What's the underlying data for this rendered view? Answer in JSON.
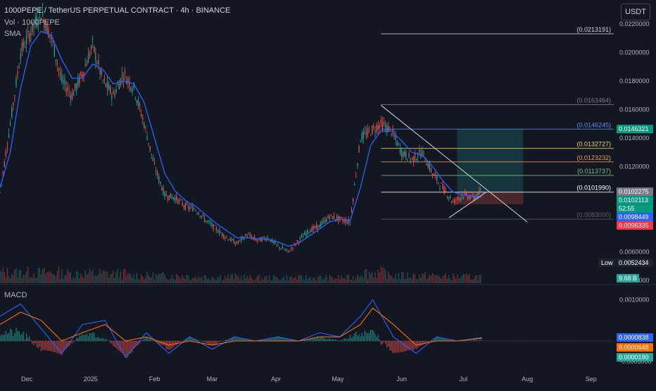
{
  "header": {
    "symbol_title": "1000PEPE / TetherUS PERPETUAL CONTRACT · 4h · BINANCE",
    "volume_label": "Vol · 1000PEPE",
    "sma_label": "SMA",
    "currency_button": "USDT"
  },
  "colors": {
    "background": "#131722",
    "candle_up": "#26a69a",
    "candle_down": "#ef5350",
    "sma_line": "#2962ff",
    "macd_line": "#2962ff",
    "signal_line": "#ff6d00"
  },
  "chart_data": [
    {
      "type": "candlestick",
      "panel": "price",
      "y_scale": "linear",
      "ylim": [
        0.0038,
        0.0232
      ],
      "x_range": [
        "2024-11-18",
        "2025-09-12"
      ],
      "x_ticks": [
        "Dec",
        "2025",
        "Feb",
        "Mar",
        "Apr",
        "May",
        "Jun",
        "Jul",
        "Aug",
        "Sep"
      ],
      "x_tick_dates": [
        "2024-12-01",
        "2025-01-01",
        "2025-02-01",
        "2025-03-01",
        "2025-04-01",
        "2025-05-01",
        "2025-06-01",
        "2025-07-01",
        "2025-08-01",
        "2025-09-01"
      ],
      "y_ticks": [
        "0.0220000",
        "0.0200000",
        "0.0180000",
        "0.0160000",
        "0.0140000",
        "0.0120000",
        "0.0060000",
        "0.0040000"
      ],
      "y_tick_values": [
        0.022,
        0.02,
        0.018,
        0.016,
        0.014,
        0.012,
        0.006,
        0.004
      ],
      "series": [
        {
          "x": [
            "2024-11-18",
            "2024-11-23",
            "2024-11-28",
            "2024-12-03",
            "2024-12-08",
            "2024-12-13",
            "2024-12-18",
            "2024-12-23",
            "2024-12-28",
            "2025-01-02",
            "2025-01-07",
            "2025-01-12",
            "2025-01-17",
            "2025-01-22",
            "2025-01-27",
            "2025-02-01",
            "2025-02-06",
            "2025-02-11",
            "2025-02-16",
            "2025-02-21",
            "2025-02-26",
            "2025-03-03",
            "2025-03-08",
            "2025-03-13",
            "2025-03-18",
            "2025-03-23",
            "2025-03-28",
            "2025-04-02",
            "2025-04-07",
            "2025-04-12",
            "2025-04-17",
            "2025-04-22",
            "2025-04-27",
            "2025-05-02",
            "2025-05-07",
            "2025-05-12",
            "2025-05-17",
            "2025-05-22",
            "2025-05-27",
            "2025-06-01",
            "2025-06-06",
            "2025-06-11",
            "2025-06-16",
            "2025-06-21",
            "2025-06-26",
            "2025-07-01",
            "2025-07-06",
            "2025-07-10"
          ],
          "close": [
            0.0102,
            0.015,
            0.02,
            0.0215,
            0.0228,
            0.021,
            0.018,
            0.017,
            0.0185,
            0.0205,
            0.018,
            0.017,
            0.0185,
            0.0175,
            0.015,
            0.012,
            0.01,
            0.0098,
            0.0092,
            0.009,
            0.0082,
            0.0076,
            0.007,
            0.0066,
            0.0072,
            0.0068,
            0.007,
            0.0064,
            0.006,
            0.0068,
            0.0075,
            0.0078,
            0.0085,
            0.0083,
            0.0081,
            0.014,
            0.0145,
            0.015,
            0.0145,
            0.013,
            0.0125,
            0.013,
            0.0115,
            0.0105,
            0.0095,
            0.01,
            0.0098,
            0.0102
          ]
        }
      ],
      "sma_series": [
        0.0105,
        0.013,
        0.0175,
        0.0205,
        0.0215,
        0.0212,
        0.0195,
        0.0182,
        0.0182,
        0.0192,
        0.0188,
        0.0178,
        0.018,
        0.0178,
        0.0165,
        0.014,
        0.0115,
        0.0103,
        0.0096,
        0.0092,
        0.0086,
        0.008,
        0.0075,
        0.007,
        0.007,
        0.0069,
        0.0069,
        0.0067,
        0.0064,
        0.0066,
        0.0071,
        0.0076,
        0.0081,
        0.0083,
        0.0082,
        0.0105,
        0.0135,
        0.0145,
        0.0145,
        0.0138,
        0.013,
        0.0128,
        0.012,
        0.011,
        0.0102,
        0.01,
        0.0099,
        0.00984
      ],
      "fib_levels": [
        {
          "label": "(0.0213191)",
          "value": 0.0213191,
          "color": "#d1d4dc"
        },
        {
          "label": "(0.0163464)",
          "value": 0.0163464,
          "color": "#787b86"
        },
        {
          "label": "(0.0146245)",
          "value": 0.0146245,
          "color": "#5b8def"
        },
        {
          "label": "(0.0132727)",
          "value": 0.0132727,
          "color": "#f0d66e"
        },
        {
          "label": "(0.0123232)",
          "value": 0.0123232,
          "color": "#ef9d5e"
        },
        {
          "label": "(0.0113737)",
          "value": 0.0113737,
          "color": "#7cc48c"
        },
        {
          "label": "(0.0101990)",
          "value": 0.010199,
          "color": "#ffffff"
        },
        {
          "label": "(0.0083000)",
          "value": 0.0083,
          "color": "#5d606b"
        }
      ],
      "position_tool": {
        "entry": 0.01019,
        "target": 0.0146245,
        "stop": 0.00935,
        "start": "2025-06-28",
        "end": "2025-07-30"
      },
      "trendlines": [
        {
          "from": [
            "2025-05-22",
            0.0163
          ],
          "to": [
            "2025-08-01",
            0.0081
          ]
        },
        {
          "from": [
            "2025-06-24",
            0.0084
          ],
          "to": [
            "2025-07-12",
            0.0102
          ]
        }
      ],
      "price_tags": [
        {
          "text": "0.0146321",
          "value": 0.0146321,
          "bg": "#089981",
          "fg": "#ffffff"
        },
        {
          "text": "0.0102275",
          "value": 0.0102275,
          "bg": "#787b86",
          "fg": "#ffffff"
        },
        {
          "text": "0.0102113",
          "value": 0.0102113,
          "bg": "#089981",
          "fg": "#ffffff"
        },
        {
          "text": "52:55",
          "value": 0.01,
          "bg": "#089981",
          "fg": "#ffffff"
        },
        {
          "text": "0.0098449",
          "value": 0.0098449,
          "bg": "#2962ff",
          "fg": "#ffffff"
        },
        {
          "text": "0.0096335",
          "value": 0.0096335,
          "bg": "#f23645",
          "fg": "#ffffff"
        },
        {
          "text": "0.0052434",
          "value": 0.0052434,
          "bg": "#1e222d",
          "fg": "#ffffff",
          "prefix": "Low"
        }
      ]
    },
    {
      "type": "bar",
      "panel": "volume",
      "last_value_label": "9.68 B",
      "x": [
        "2024-11-18",
        "2024-12-18",
        "2025-01-18",
        "2025-02-18",
        "2025-03-18",
        "2025-04-18",
        "2025-05-10",
        "2025-05-25",
        "2025-06-20",
        "2025-07-10"
      ],
      "values": [
        0.5,
        0.45,
        0.35,
        0.3,
        0.25,
        0.25,
        0.5,
        0.35,
        0.3,
        0.2
      ]
    },
    {
      "type": "line",
      "panel": "macd",
      "title": "MACD",
      "ylim": [
        -0.00065,
        0.0013
      ],
      "y_ticks": [
        "0.0010000",
        "-0.0005000"
      ],
      "y_tick_values": [
        0.001,
        -0.0005
      ],
      "value_tags": [
        {
          "text": "0.0000838",
          "value": 8.38e-05,
          "bg": "#2962ff"
        },
        {
          "text": "0.0000648",
          "value": 6.48e-05,
          "bg": "#ff6d00"
        },
        {
          "text": "0.0000190",
          "value": 1.9e-05,
          "bg": "#26a69a"
        }
      ],
      "series": [
        {
          "role": "macd",
          "x": [
            "2024-11-18",
            "2024-11-28",
            "2024-12-08",
            "2024-12-18",
            "2024-12-28",
            "2025-01-08",
            "2025-01-18",
            "2025-01-28",
            "2025-02-08",
            "2025-02-18",
            "2025-03-01",
            "2025-03-12",
            "2025-03-22",
            "2025-04-02",
            "2025-04-12",
            "2025-04-22",
            "2025-05-02",
            "2025-05-12",
            "2025-05-18",
            "2025-05-28",
            "2025-06-08",
            "2025-06-18",
            "2025-06-28",
            "2025-07-10"
          ],
          "values": [
            0.0006,
            0.0009,
            0.0003,
            -0.0003,
            0.0004,
            0.0005,
            -0.0004,
            0.0002,
            -0.0003,
            0.0001,
            -0.0002,
            0.0001,
            0.0,
            0.0001,
            0.0,
            0.0002,
            0.0001,
            0.0006,
            0.001,
            0.0001,
            -0.0003,
            0.0001,
            0.0,
            8.38e-05
          ]
        },
        {
          "role": "signal",
          "x": [
            "2024-11-18",
            "2024-11-28",
            "2024-12-08",
            "2024-12-18",
            "2024-12-28",
            "2025-01-08",
            "2025-01-18",
            "2025-01-28",
            "2025-02-08",
            "2025-02-18",
            "2025-03-01",
            "2025-03-12",
            "2025-03-22",
            "2025-04-02",
            "2025-04-12",
            "2025-04-22",
            "2025-05-02",
            "2025-05-12",
            "2025-05-18",
            "2025-05-28",
            "2025-06-08",
            "2025-06-18",
            "2025-06-28",
            "2025-07-10"
          ],
          "values": [
            0.0004,
            0.0007,
            0.0005,
            0.0,
            0.0002,
            0.0004,
            0.0,
            0.0001,
            -0.0001,
            0.0,
            -0.0001,
            0.0,
            0.0,
            0.0,
            0.0,
            0.0001,
            0.0001,
            0.0004,
            0.0008,
            0.0004,
            -0.0001,
            0.0,
            0.0,
            6.48e-05
          ]
        }
      ]
    }
  ]
}
